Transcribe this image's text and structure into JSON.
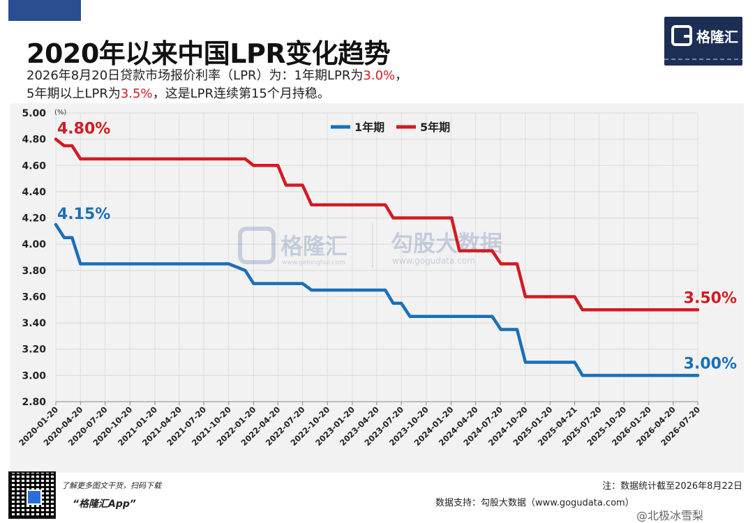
{
  "header": {
    "title": "2020年以来中国LPR变化趋势",
    "line1_a": "2026年8月20日贷款市场报价利率（LPR）为：1年期LPR为",
    "line1_red": "3.0%",
    "line1_b": "，",
    "line2_a": "5年期以上LPR为",
    "line2_red": "3.5%",
    "line2_b": "，这是LPR连续第15个月持稳。"
  },
  "logo": {
    "text": "格隆汇"
  },
  "watermark": {
    "brand": "格隆汇",
    "url": "www.gelonghui.com",
    "brand2": "勾股大数据",
    "url2": "www.gogudata.com"
  },
  "chart_data": {
    "type": "line",
    "y_unit": "(%)",
    "ylim": [
      2.8,
      5.0
    ],
    "yticks": [
      "5.00",
      "4.80",
      "4.60",
      "4.40",
      "4.20",
      "4.00",
      "3.80",
      "3.60",
      "3.40",
      "3.20",
      "3.00",
      "2.80"
    ],
    "x_ticks": [
      "2020-01-20",
      "2020-04-20",
      "2020-07-20",
      "2020-10-20",
      "2021-01-20",
      "2021-04-20",
      "2021-07-20",
      "2021-10-20",
      "2022-01-20",
      "2022-04-20",
      "2022-07-20",
      "2022-10-20",
      "2023-01-20",
      "2023-04-20",
      "2023-07-20",
      "2023-10-20",
      "2024-01-20",
      "2024-04-20",
      "2024-07-20",
      "2024-10-20",
      "2025-01-20",
      "2025-04-21",
      "2025-07-20",
      "2025-10-20",
      "2026-01-20",
      "2026-04-20",
      "2026-07-20"
    ],
    "grid": true,
    "legend_position": "top-center",
    "series": [
      {
        "name": "1年期",
        "color": "#1a6fb8",
        "points": [
          [
            "2020-01-20",
            4.15
          ],
          [
            "2020-02-20",
            4.05
          ],
          [
            "2020-03-20",
            4.05
          ],
          [
            "2020-04-20",
            3.85
          ],
          [
            "2021-10-20",
            3.85
          ],
          [
            "2021-12-20",
            3.8
          ],
          [
            "2022-01-20",
            3.7
          ],
          [
            "2022-07-20",
            3.7
          ],
          [
            "2022-08-22",
            3.65
          ],
          [
            "2023-05-22",
            3.65
          ],
          [
            "2023-06-20",
            3.55
          ],
          [
            "2023-07-20",
            3.55
          ],
          [
            "2023-08-21",
            3.45
          ],
          [
            "2024-06-20",
            3.45
          ],
          [
            "2024-07-22",
            3.35
          ],
          [
            "2024-09-20",
            3.35
          ],
          [
            "2024-10-21",
            3.1
          ],
          [
            "2025-04-21",
            3.1
          ],
          [
            "2025-05-20",
            3.0
          ],
          [
            "2026-08-20",
            3.0
          ]
        ],
        "start_label": "4.15%",
        "end_label": "3.00%"
      },
      {
        "name": "5年期",
        "color": "#d31a22",
        "points": [
          [
            "2020-01-20",
            4.8
          ],
          [
            "2020-02-20",
            4.75
          ],
          [
            "2020-03-20",
            4.75
          ],
          [
            "2020-04-20",
            4.65
          ],
          [
            "2021-12-20",
            4.65
          ],
          [
            "2022-01-20",
            4.6
          ],
          [
            "2022-04-20",
            4.6
          ],
          [
            "2022-05-20",
            4.45
          ],
          [
            "2022-07-20",
            4.45
          ],
          [
            "2022-08-22",
            4.3
          ],
          [
            "2023-05-22",
            4.3
          ],
          [
            "2023-06-20",
            4.2
          ],
          [
            "2024-01-22",
            4.2
          ],
          [
            "2024-02-20",
            3.95
          ],
          [
            "2024-06-20",
            3.95
          ],
          [
            "2024-07-22",
            3.85
          ],
          [
            "2024-09-20",
            3.85
          ],
          [
            "2024-10-21",
            3.6
          ],
          [
            "2025-04-21",
            3.6
          ],
          [
            "2025-05-20",
            3.5
          ],
          [
            "2026-08-20",
            3.5
          ]
        ],
        "start_label": "4.80%",
        "end_label": "3.50%"
      }
    ]
  },
  "footer": {
    "qr_caption": "了解更多图文干货，扫码下载",
    "app_name": "“格隆汇App”",
    "note": "注：数据统计截至2026年8月22日",
    "source": "数据支持：勾股大数据（www.gogudata.com）",
    "weibo": "@北极冰雪梨"
  }
}
